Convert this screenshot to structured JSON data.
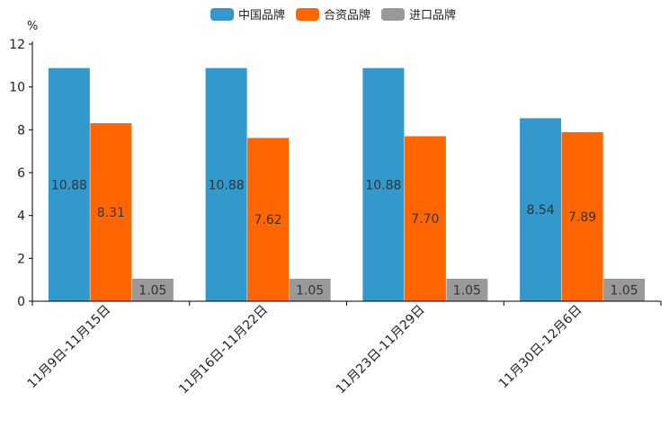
{
  "chart_data": {
    "type": "bar",
    "title": "",
    "xlabel": "",
    "ylabel": "%",
    "ylim": [
      0,
      12
    ],
    "yticks": [
      0,
      2,
      4,
      6,
      8,
      10,
      12
    ],
    "grid": false,
    "legend_position": "top-center",
    "categories": [
      "11月9日-11月15日",
      "11月16日-11月22日",
      "11月23日-11月29日",
      "11月30日-12月6日"
    ],
    "series": [
      {
        "name": "中国品牌",
        "color": "#3399CC",
        "values": [
          10.88,
          10.88,
          10.88,
          8.54
        ],
        "labels": [
          "10.88",
          "10.88",
          "10.88",
          "8.54"
        ]
      },
      {
        "name": "合资品牌",
        "color": "#FF6600",
        "values": [
          8.31,
          7.62,
          7.7,
          7.89
        ],
        "labels": [
          "8.31",
          "7.62",
          "7.70",
          "7.89"
        ]
      },
      {
        "name": "进口品牌",
        "color": "#999999",
        "values": [
          1.05,
          1.05,
          1.05,
          1.05
        ],
        "labels": [
          "1.05",
          "1.05",
          "1.05",
          "1.05"
        ]
      }
    ]
  }
}
